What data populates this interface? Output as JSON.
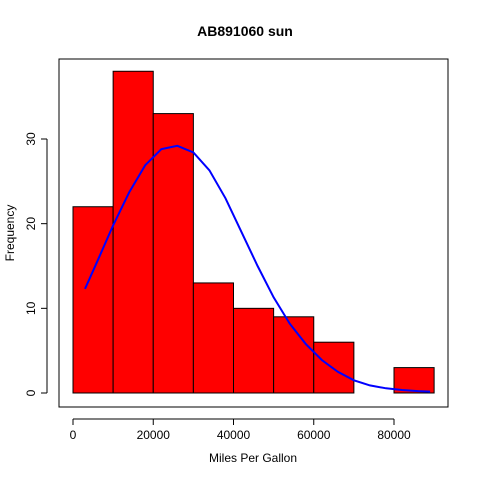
{
  "chart_data": {
    "type": "bar",
    "title": "AB891060 sun",
    "xlabel": "Miles Per Gallon",
    "ylabel": "Frequency",
    "xlim": [
      0,
      90000
    ],
    "ylim": [
      0,
      38
    ],
    "bins": [
      {
        "x0": 0,
        "x1": 10000,
        "count": 22
      },
      {
        "x0": 10000,
        "x1": 20000,
        "count": 38
      },
      {
        "x0": 20000,
        "x1": 30000,
        "count": 33
      },
      {
        "x0": 30000,
        "x1": 40000,
        "count": 13
      },
      {
        "x0": 40000,
        "x1": 50000,
        "count": 10
      },
      {
        "x0": 50000,
        "x1": 60000,
        "count": 9
      },
      {
        "x0": 60000,
        "x1": 70000,
        "count": 6
      },
      {
        "x0": 70000,
        "x1": 80000,
        "count": 0
      },
      {
        "x0": 80000,
        "x1": 90000,
        "count": 3
      }
    ],
    "x_ticks": [
      {
        "value": 0,
        "label": "0"
      },
      {
        "value": 20000,
        "label": "20000"
      },
      {
        "value": 40000,
        "label": "40000"
      },
      {
        "value": 60000,
        "label": "60000"
      },
      {
        "value": 80000,
        "label": "80000"
      }
    ],
    "y_ticks": [
      {
        "value": 0,
        "label": "0"
      },
      {
        "value": 10,
        "label": "10"
      },
      {
        "value": 20,
        "label": "20"
      },
      {
        "value": 30,
        "label": "30"
      }
    ],
    "density_curve": {
      "x": [
        3000,
        6000,
        10000,
        14000,
        18000,
        22000,
        26000,
        30000,
        34000,
        38000,
        42000,
        46000,
        50000,
        54000,
        58000,
        62000,
        66000,
        70000,
        74000,
        78000,
        82000,
        86000,
        89000
      ],
      "y": [
        12.3,
        15.5,
        19.8,
        23.7,
        26.9,
        28.8,
        29.2,
        28.4,
        26.3,
        23.0,
        19.0,
        15.0,
        11.3,
        8.2,
        5.8,
        3.9,
        2.5,
        1.5,
        0.9,
        0.55,
        0.35,
        0.22,
        0.16
      ]
    },
    "colors": {
      "bar_fill": "#ff0000",
      "bar_stroke": "#000000",
      "curve": "#0000ff",
      "axis": "#000000"
    },
    "grid": false,
    "legend": "none"
  }
}
